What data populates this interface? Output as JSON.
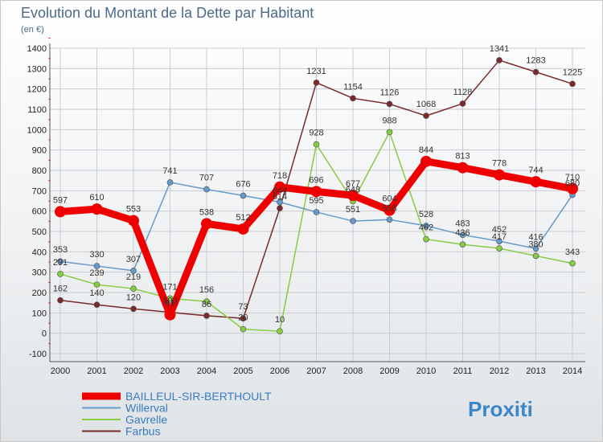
{
  "chart_data": {
    "type": "line",
    "title": "Evolution du Montant de la Dette par Habitant",
    "subtitle": "(en €)",
    "x": [
      2000,
      2001,
      2002,
      2003,
      2004,
      2005,
      2006,
      2007,
      2008,
      2009,
      2010,
      2011,
      2012,
      2013,
      2014
    ],
    "ylim": [
      -100,
      1400
    ],
    "yticks": [
      -100,
      0,
      100,
      200,
      300,
      400,
      500,
      600,
      700,
      800,
      900,
      1000,
      1100,
      1200,
      1300,
      1400
    ],
    "grid": true,
    "legend_position": "bottom-left",
    "series": [
      {
        "name": "BAILLEUL-SIR-BERTHOULT",
        "color": "#ee0000",
        "values": [
          597,
          610,
          553,
          91,
          538,
          512,
          718,
          696,
          677,
          604,
          844,
          813,
          778,
          744,
          710
        ],
        "labels": [
          "597",
          "610",
          "553",
          "91",
          "538",
          "512",
          "718",
          "696",
          "677",
          "604",
          "844",
          "813",
          "778",
          "744",
          "710"
        ]
      },
      {
        "name": "Willerval",
        "color": "#6699cc",
        "values": [
          353,
          330,
          307,
          741,
          707,
          676,
          644,
          595,
          551,
          558,
          528,
          483,
          452,
          416,
          680
        ],
        "labels": [
          "353",
          "330",
          "307",
          "741",
          "707",
          "676",
          "644",
          "595",
          "551",
          "558",
          "528",
          "483",
          "452",
          "416",
          "680"
        ]
      },
      {
        "name": "Gavrelle",
        "color": "#88cc44",
        "values": [
          291,
          239,
          219,
          171,
          156,
          20,
          10,
          928,
          648,
          988,
          462,
          436,
          417,
          380,
          343
        ],
        "labels": [
          "291",
          "239",
          "219",
          "171",
          "156",
          "20",
          "10",
          "928",
          "648",
          "988",
          "462",
          "436",
          "417",
          "380",
          "343"
        ]
      },
      {
        "name": "Farbus",
        "color": "#7a2a2a",
        "values": [
          162,
          140,
          120,
          103,
          86,
          73,
          614,
          1231,
          1154,
          1126,
          1068,
          1128,
          1341,
          1283,
          1225
        ],
        "labels": [
          "162",
          "140",
          "120",
          "103",
          "86",
          "73",
          "614",
          "1231",
          "1154",
          "1126",
          "1068",
          "1128",
          "1341",
          "1283",
          "1225"
        ]
      }
    ]
  },
  "brand": {
    "name": "Proxiti"
  }
}
